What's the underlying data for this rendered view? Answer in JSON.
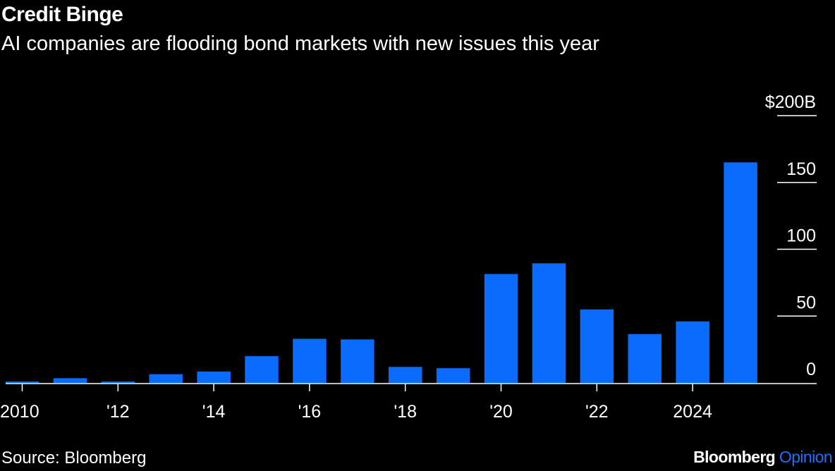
{
  "header": {
    "title": "Credit Binge",
    "subtitle": "AI companies are flooding bond markets with new issues this year"
  },
  "footer": {
    "source": "Source: Bloomberg",
    "brand_main": "Bloomberg",
    "brand_accent": "Opinion"
  },
  "colors": {
    "bar": "#0a6cff",
    "background": "#000000",
    "text": "#ffffff",
    "accent": "#1f6fff"
  },
  "chart_data": {
    "type": "bar",
    "title": "Credit Binge",
    "subtitle": "AI companies are flooding bond markets with new issues this year",
    "categories": [
      "2010",
      "2011",
      "2012",
      "2013",
      "2014",
      "2015",
      "2016",
      "2017",
      "2018",
      "2019",
      "2020",
      "2021",
      "2022",
      "2023",
      "2024",
      "2025"
    ],
    "values": [
      1,
      3.5,
      1,
      6.5,
      8.5,
      20,
      33,
      32.5,
      12,
      11,
      81.5,
      89.5,
      55,
      36.5,
      46,
      165
    ],
    "x_tick_labels": [
      {
        "category": "2010",
        "label": "2010"
      },
      {
        "category": "2012",
        "label": "'12"
      },
      {
        "category": "2014",
        "label": "'14"
      },
      {
        "category": "2016",
        "label": "'16"
      },
      {
        "category": "2018",
        "label": "'18"
      },
      {
        "category": "2020",
        "label": "'20"
      },
      {
        "category": "2022",
        "label": "'22"
      },
      {
        "category": "2024",
        "label": "2024"
      }
    ],
    "y_ticks": [
      {
        "value": 0,
        "label": "0"
      },
      {
        "value": 50,
        "label": "50"
      },
      {
        "value": 100,
        "label": "100"
      },
      {
        "value": 150,
        "label": "150"
      },
      {
        "value": 200,
        "label": "$200B"
      }
    ],
    "ylim": [
      0,
      200
    ],
    "xlabel": "",
    "ylabel": "",
    "grid": false,
    "y_axis_position": "right"
  }
}
